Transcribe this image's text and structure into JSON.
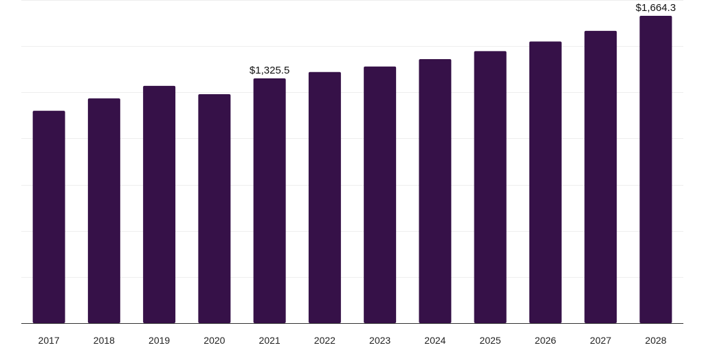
{
  "chart_data": {
    "type": "bar",
    "title": "",
    "xlabel": "",
    "ylabel": "",
    "categories": [
      "2017",
      "2018",
      "2019",
      "2020",
      "2021",
      "2022",
      "2023",
      "2024",
      "2025",
      "2026",
      "2027",
      "2028"
    ],
    "values": [
      1150,
      1217,
      1285,
      1240,
      1325.5,
      1360,
      1390,
      1430,
      1473,
      1525,
      1583,
      1664.3
    ],
    "data_labels": [
      {
        "category": "2021",
        "text": "$1,325.5"
      },
      {
        "category": "2028",
        "text": "$1,664.3"
      }
    ],
    "ylim": [
      0,
      1750
    ],
    "y_gridlines": [
      0,
      250,
      500,
      750,
      1000,
      1250,
      1500,
      1750
    ],
    "grid": true,
    "legend": "none",
    "bar_color": "#361148"
  }
}
